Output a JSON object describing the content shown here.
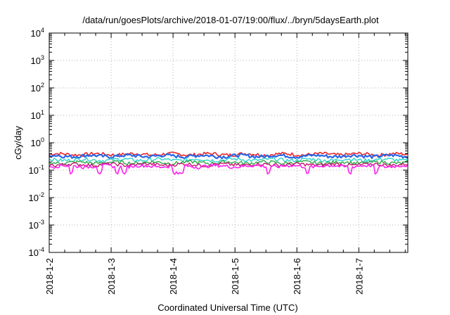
{
  "chart_data": {
    "type": "line",
    "title": "/data/run/goesPlots/archive/2018-01-07/19:00/flux/../bryn/5daysEarth.plot",
    "xlabel": "Coordinated Universal Time (UTC)",
    "ylabel": "cGy/day",
    "yscale": "log",
    "ylim": [
      0.0001,
      10000
    ],
    "xlim": [
      "2018-01-02",
      "2018-01-07 19:00"
    ],
    "grid": true,
    "x_ticks": [
      "2018-1-2",
      "2018-1-3",
      "2018-1-4",
      "2018-1-5",
      "2018-1-6",
      "2018-1-7"
    ],
    "y_ticks": [
      {
        "base": "10",
        "exp": "-4",
        "value": 0.0001
      },
      {
        "base": "10",
        "exp": "-3",
        "value": 0.001
      },
      {
        "base": "10",
        "exp": "-2",
        "value": 0.01
      },
      {
        "base": "10",
        "exp": "-1",
        "value": 0.1
      },
      {
        "base": "10",
        "exp": "0",
        "value": 1
      },
      {
        "base": "10",
        "exp": "1",
        "value": 10
      },
      {
        "base": "10",
        "exp": "2",
        "value": 100
      },
      {
        "base": "10",
        "exp": "3",
        "value": 1000
      },
      {
        "base": "10",
        "exp": "4",
        "value": 10000
      }
    ],
    "series": [
      {
        "color": "#e8262a",
        "level": 0.38,
        "dips": [],
        "width": 1.6
      },
      {
        "color": "#2a67e8",
        "level": 0.33,
        "dips": [],
        "width": 2.2
      },
      {
        "color": "#2bd4c8",
        "level": 0.24,
        "dips": [],
        "width": 1.4
      },
      {
        "color": "#2fa84a",
        "level": 0.19,
        "dips": [],
        "width": 1.4
      },
      {
        "color": "#c01a6a",
        "level": 0.16,
        "dips": [],
        "width": 1.4
      },
      {
        "color": "#ff22ee",
        "level": 0.14,
        "dips": [
          0.06,
          0.14,
          0.19,
          0.21,
          0.35,
          0.36,
          0.37,
          0.61,
          0.72,
          0.84,
          0.91
        ],
        "width": 1.6
      }
    ]
  }
}
